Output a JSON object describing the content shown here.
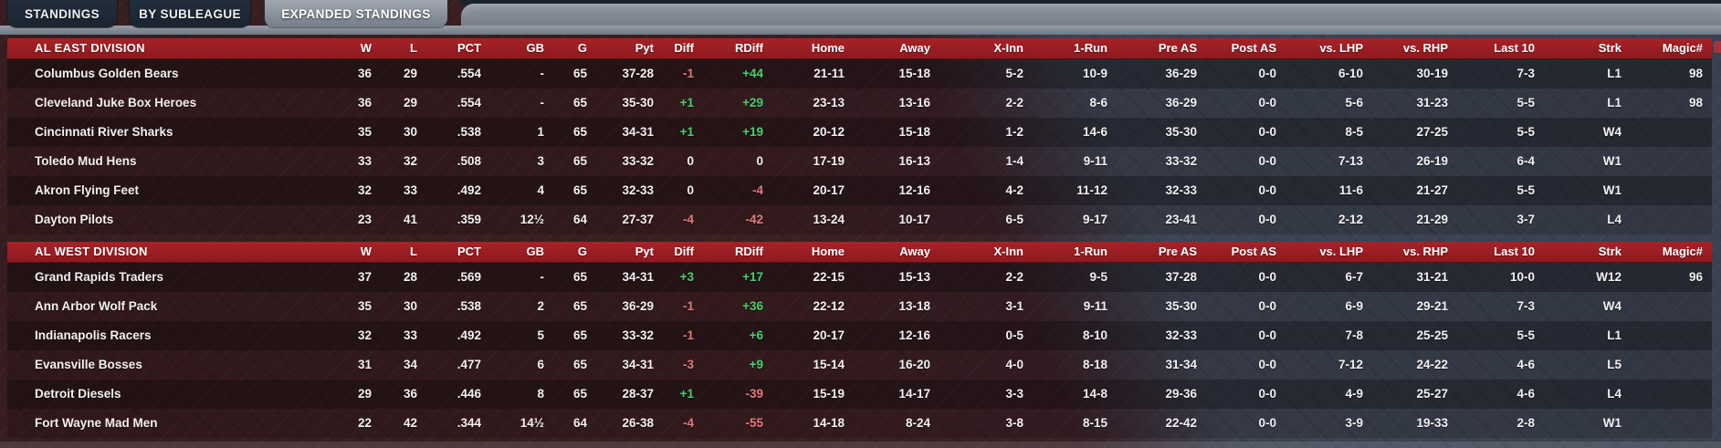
{
  "tabs": [
    {
      "label": "STANDINGS",
      "active": false
    },
    {
      "label": "BY SUBLEAGUE",
      "active": false
    },
    {
      "label": "EXPANDED STANDINGS",
      "active": true
    }
  ],
  "columns": [
    "W",
    "L",
    "PCT",
    "GB",
    "G",
    "Pyt",
    "Diff",
    "RDiff",
    "Home",
    "Away",
    "X-Inn",
    "1-Run",
    "Pre AS",
    "Post AS",
    "vs. LHP",
    "vs. RHP",
    "Last 10",
    "Strk",
    "Magic#"
  ],
  "colors": {
    "positive": "#46d06d",
    "negative": "#e4797d",
    "header_red": "#a82227",
    "active_tab_gray": "#8d95a0"
  },
  "divisions": [
    {
      "name": "AL EAST DIVISION",
      "teams": [
        {
          "team": "Columbus Golden Bears",
          "w": "36",
          "l": "29",
          "pct": ".554",
          "gb": "-",
          "g": "65",
          "pyt": "37-28",
          "diff": "-1",
          "rdiff": "+44",
          "home": "21-11",
          "away": "15-18",
          "x_inn": "5-2",
          "one_run": "10-9",
          "pre_as": "36-29",
          "post_as": "0-0",
          "vs_lhp": "6-10",
          "vs_rhp": "30-19",
          "last_10": "7-3",
          "strk": "L1",
          "magic": "98"
        },
        {
          "team": "Cleveland Juke Box Heroes",
          "w": "36",
          "l": "29",
          "pct": ".554",
          "gb": "-",
          "g": "65",
          "pyt": "35-30",
          "diff": "+1",
          "rdiff": "+29",
          "home": "23-13",
          "away": "13-16",
          "x_inn": "2-2",
          "one_run": "8-6",
          "pre_as": "36-29",
          "post_as": "0-0",
          "vs_lhp": "5-6",
          "vs_rhp": "31-23",
          "last_10": "5-5",
          "strk": "L1",
          "magic": "98"
        },
        {
          "team": "Cincinnati River Sharks",
          "w": "35",
          "l": "30",
          "pct": ".538",
          "gb": "1",
          "g": "65",
          "pyt": "34-31",
          "diff": "+1",
          "rdiff": "+19",
          "home": "20-12",
          "away": "15-18",
          "x_inn": "1-2",
          "one_run": "14-6",
          "pre_as": "35-30",
          "post_as": "0-0",
          "vs_lhp": "8-5",
          "vs_rhp": "27-25",
          "last_10": "5-5",
          "strk": "W4",
          "magic": ""
        },
        {
          "team": "Toledo Mud Hens",
          "w": "33",
          "l": "32",
          "pct": ".508",
          "gb": "3",
          "g": "65",
          "pyt": "33-32",
          "diff": "0",
          "rdiff": "0",
          "home": "17-19",
          "away": "16-13",
          "x_inn": "1-4",
          "one_run": "9-11",
          "pre_as": "33-32",
          "post_as": "0-0",
          "vs_lhp": "7-13",
          "vs_rhp": "26-19",
          "last_10": "6-4",
          "strk": "W1",
          "magic": ""
        },
        {
          "team": "Akron Flying Feet",
          "w": "32",
          "l": "33",
          "pct": ".492",
          "gb": "4",
          "g": "65",
          "pyt": "32-33",
          "diff": "0",
          "rdiff": "-4",
          "home": "20-17",
          "away": "12-16",
          "x_inn": "4-2",
          "one_run": "11-12",
          "pre_as": "32-33",
          "post_as": "0-0",
          "vs_lhp": "11-6",
          "vs_rhp": "21-27",
          "last_10": "5-5",
          "strk": "W1",
          "magic": ""
        },
        {
          "team": "Dayton Pilots",
          "w": "23",
          "l": "41",
          "pct": ".359",
          "gb": "12½",
          "g": "64",
          "pyt": "27-37",
          "diff": "-4",
          "rdiff": "-42",
          "home": "13-24",
          "away": "10-17",
          "x_inn": "6-5",
          "one_run": "9-17",
          "pre_as": "23-41",
          "post_as": "0-0",
          "vs_lhp": "2-12",
          "vs_rhp": "21-29",
          "last_10": "3-7",
          "strk": "L4",
          "magic": ""
        }
      ]
    },
    {
      "name": "AL WEST DIVISION",
      "teams": [
        {
          "team": "Grand Rapids Traders",
          "w": "37",
          "l": "28",
          "pct": ".569",
          "gb": "-",
          "g": "65",
          "pyt": "34-31",
          "diff": "+3",
          "rdiff": "+17",
          "home": "22-15",
          "away": "15-13",
          "x_inn": "2-2",
          "one_run": "9-5",
          "pre_as": "37-28",
          "post_as": "0-0",
          "vs_lhp": "6-7",
          "vs_rhp": "31-21",
          "last_10": "10-0",
          "strk": "W12",
          "magic": "96"
        },
        {
          "team": "Ann Arbor Wolf Pack",
          "w": "35",
          "l": "30",
          "pct": ".538",
          "gb": "2",
          "g": "65",
          "pyt": "36-29",
          "diff": "-1",
          "rdiff": "+36",
          "home": "22-12",
          "away": "13-18",
          "x_inn": "3-1",
          "one_run": "9-11",
          "pre_as": "35-30",
          "post_as": "0-0",
          "vs_lhp": "6-9",
          "vs_rhp": "29-21",
          "last_10": "7-3",
          "strk": "W4",
          "magic": ""
        },
        {
          "team": "Indianapolis Racers",
          "w": "32",
          "l": "33",
          "pct": ".492",
          "gb": "5",
          "g": "65",
          "pyt": "33-32",
          "diff": "-1",
          "rdiff": "+6",
          "home": "20-17",
          "away": "12-16",
          "x_inn": "0-5",
          "one_run": "8-10",
          "pre_as": "32-33",
          "post_as": "0-0",
          "vs_lhp": "7-8",
          "vs_rhp": "25-25",
          "last_10": "5-5",
          "strk": "L1",
          "magic": ""
        },
        {
          "team": "Evansville Bosses",
          "w": "31",
          "l": "34",
          "pct": ".477",
          "gb": "6",
          "g": "65",
          "pyt": "34-31",
          "diff": "-3",
          "rdiff": "+9",
          "home": "15-14",
          "away": "16-20",
          "x_inn": "4-0",
          "one_run": "8-18",
          "pre_as": "31-34",
          "post_as": "0-0",
          "vs_lhp": "7-12",
          "vs_rhp": "24-22",
          "last_10": "4-6",
          "strk": "L5",
          "magic": ""
        },
        {
          "team": "Detroit Diesels",
          "w": "29",
          "l": "36",
          "pct": ".446",
          "gb": "8",
          "g": "65",
          "pyt": "28-37",
          "diff": "+1",
          "rdiff": "-39",
          "home": "15-19",
          "away": "14-17",
          "x_inn": "3-3",
          "one_run": "14-8",
          "pre_as": "29-36",
          "post_as": "0-0",
          "vs_lhp": "4-9",
          "vs_rhp": "25-27",
          "last_10": "4-6",
          "strk": "L4",
          "magic": ""
        },
        {
          "team": "Fort Wayne Mad Men",
          "w": "22",
          "l": "42",
          "pct": ".344",
          "gb": "14½",
          "g": "64",
          "pyt": "26-38",
          "diff": "-4",
          "rdiff": "-55",
          "home": "14-18",
          "away": "8-24",
          "x_inn": "3-8",
          "one_run": "8-15",
          "pre_as": "22-42",
          "post_as": "0-0",
          "vs_lhp": "3-9",
          "vs_rhp": "19-33",
          "last_10": "2-8",
          "strk": "W1",
          "magic": ""
        }
      ]
    }
  ]
}
